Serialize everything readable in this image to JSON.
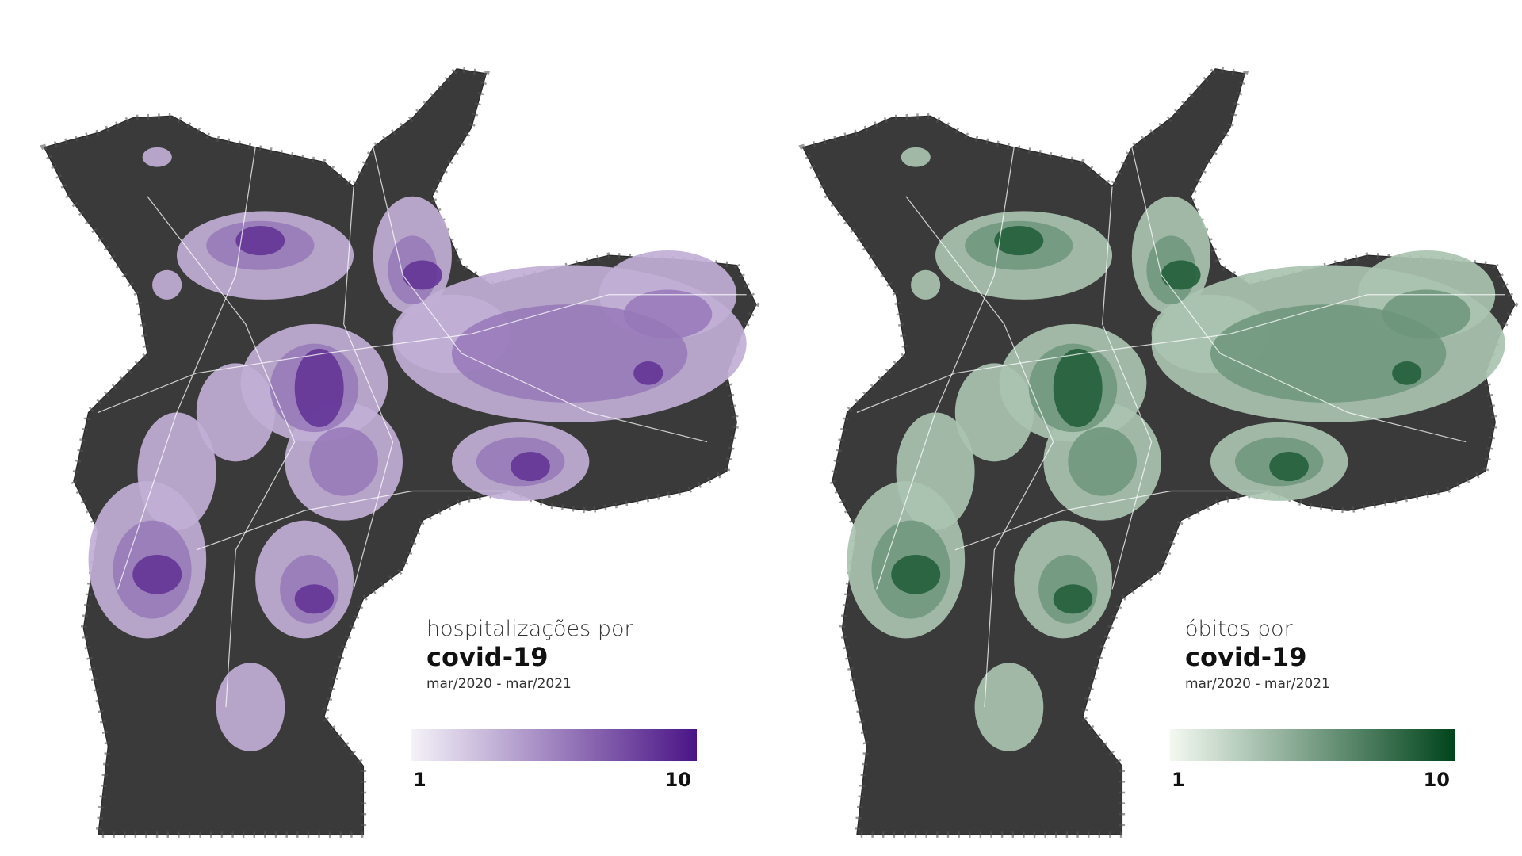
{
  "panels": [
    {
      "title_line1": "hospitalizações por",
      "title_line2": "covid-19",
      "period": "mar/2020 - mar/2021",
      "legend": {
        "min": 1,
        "max": 10,
        "color_low": "#f4f2f8",
        "color_high": "#4a1486"
      }
    },
    {
      "title_line1": "óbitos por",
      "title_line2": "covid-19",
      "period": "mar/2020 - mar/2021",
      "legend": {
        "min": 1,
        "max": 10,
        "color_low": "#f3f9f1",
        "color_high": "#00441b"
      }
    }
  ]
}
